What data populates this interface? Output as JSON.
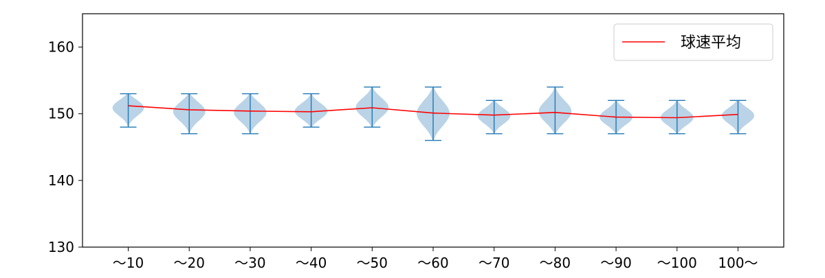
{
  "chart_data": {
    "type": "violin",
    "categories": [
      "～10",
      "～20",
      "～30",
      "～40",
      "～50",
      "～60",
      "～70",
      "～80",
      "～90",
      "～100",
      "100～"
    ],
    "ylim": [
      130,
      165
    ],
    "yticks": [
      130,
      140,
      150,
      160
    ],
    "grid": false,
    "legend_position": "top-right",
    "legend": [
      {
        "label": "球速平均",
        "color": "#ff0000"
      }
    ],
    "series": [
      {
        "name": "球速平均",
        "values": [
          151.2,
          150.6,
          150.4,
          150.3,
          150.9,
          150.1,
          149.8,
          150.2,
          149.5,
          149.4,
          149.9
        ]
      }
    ],
    "violins": [
      {
        "min": 148,
        "max": 153,
        "mean": 151.2
      },
      {
        "min": 147,
        "max": 153,
        "mean": 150.6
      },
      {
        "min": 147,
        "max": 153,
        "mean": 150.4
      },
      {
        "min": 148,
        "max": 153,
        "mean": 150.3
      },
      {
        "min": 148,
        "max": 154,
        "mean": 150.9
      },
      {
        "min": 146,
        "max": 154,
        "mean": 150.1
      },
      {
        "min": 147,
        "max": 152,
        "mean": 149.8
      },
      {
        "min": 147,
        "max": 154,
        "mean": 150.2
      },
      {
        "min": 147,
        "max": 152,
        "mean": 149.5
      },
      {
        "min": 147,
        "max": 152,
        "mean": 149.4
      },
      {
        "min": 147,
        "max": 152,
        "mean": 149.9
      }
    ],
    "colors": {
      "violin_fill": "#a9c8e1",
      "violin_line": "#1f77b4",
      "mean_line": "#ff0000"
    }
  }
}
